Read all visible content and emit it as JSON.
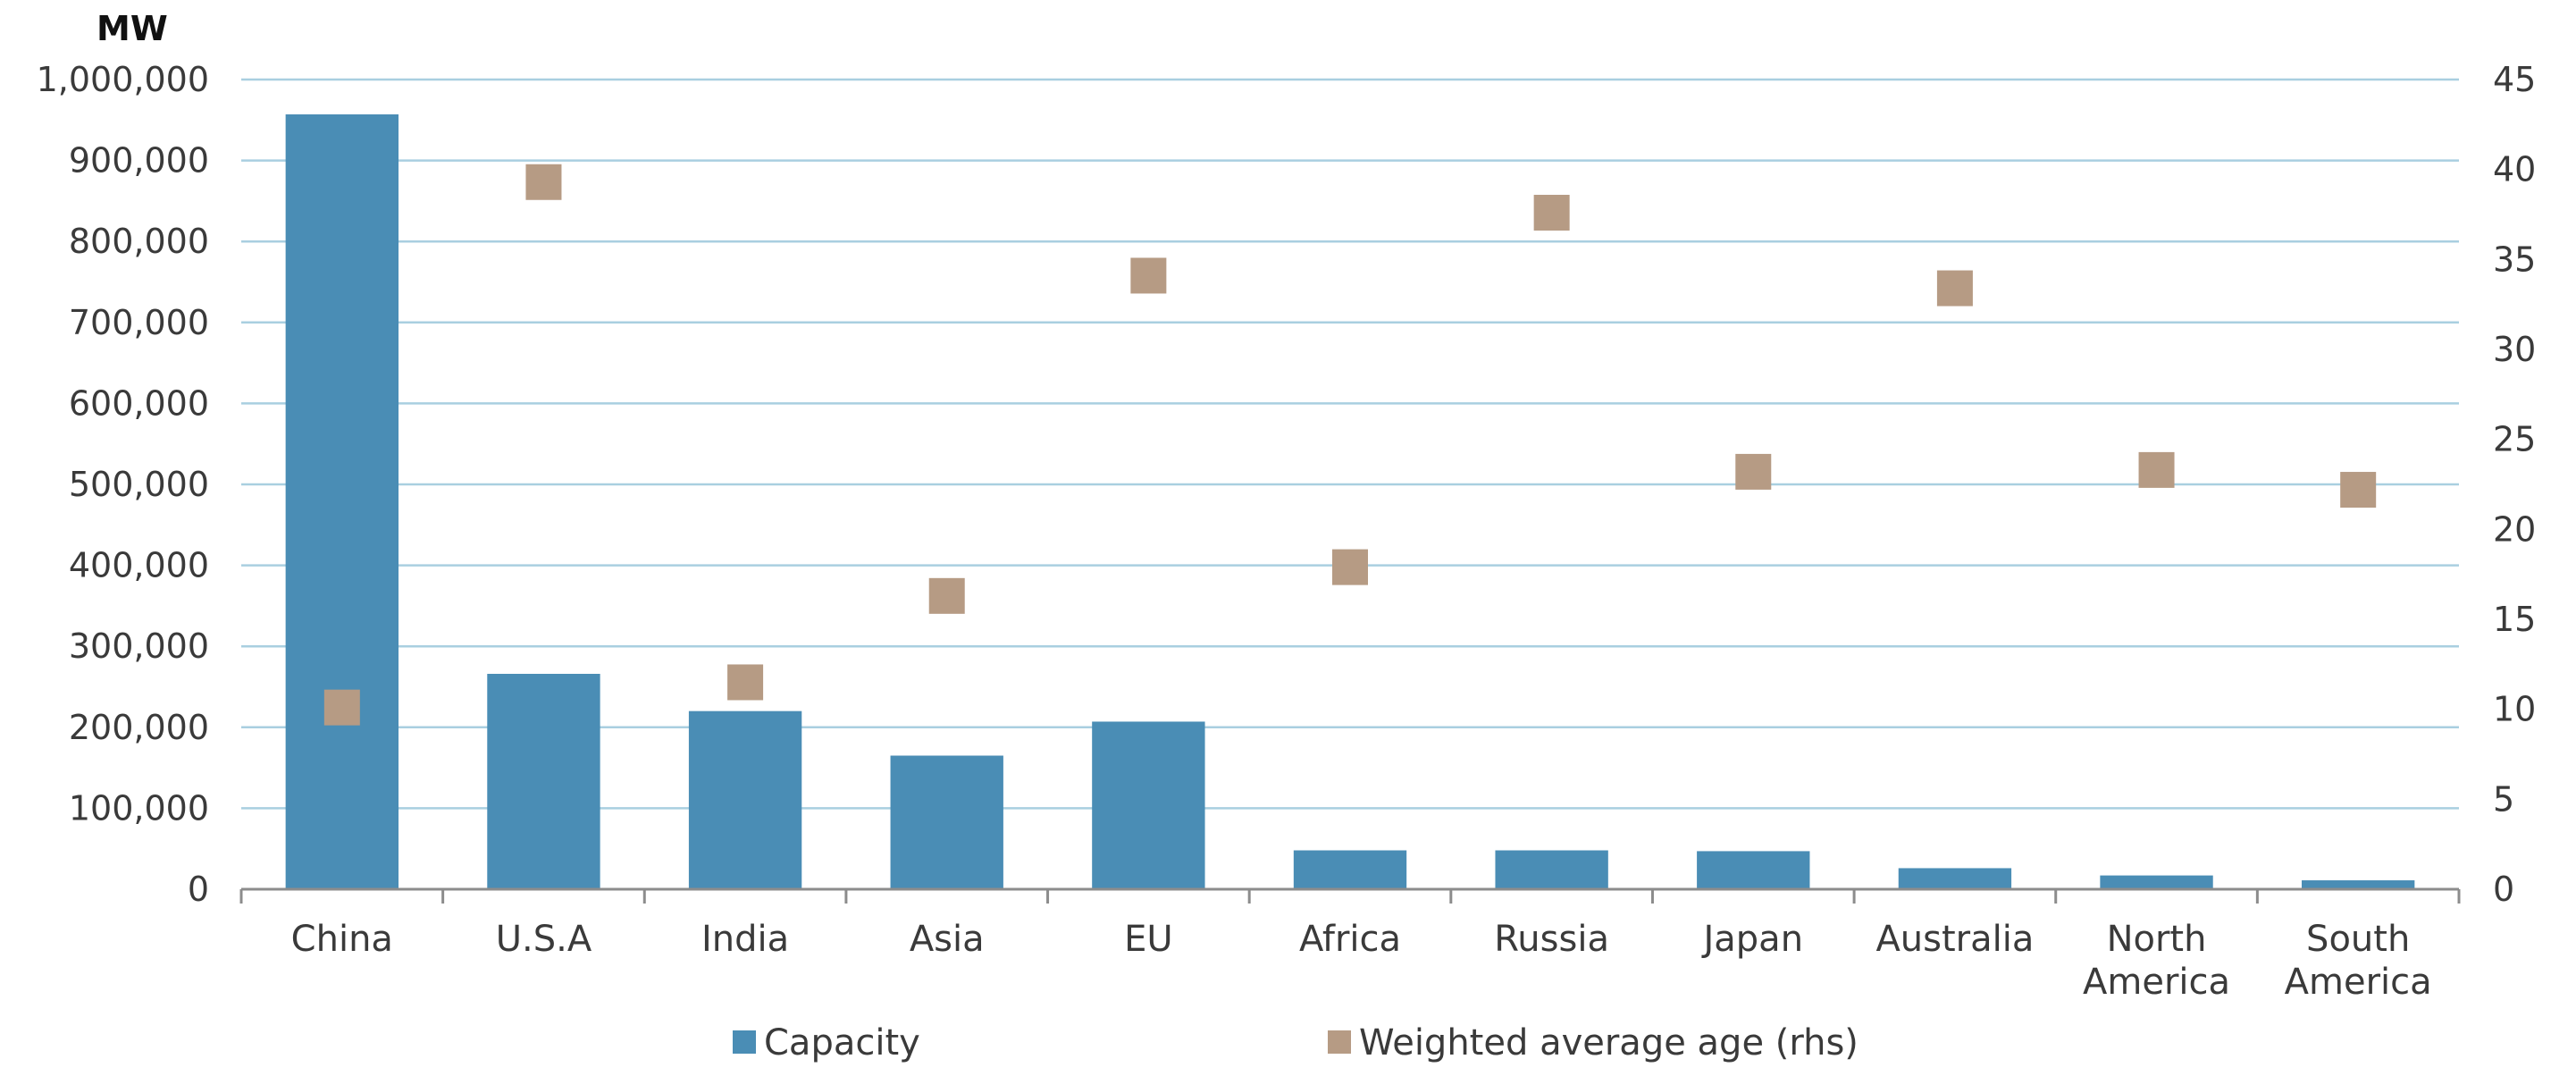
{
  "chart_data": {
    "type": "bar",
    "unit_label": "MW",
    "categories": [
      [
        "China"
      ],
      [
        "U.S.A"
      ],
      [
        "India"
      ],
      [
        "Asia"
      ],
      [
        "EU"
      ],
      [
        "Africa"
      ],
      [
        "Russia"
      ],
      [
        "Japan"
      ],
      [
        "Australia"
      ],
      [
        "North",
        "America"
      ],
      [
        "South",
        "America"
      ]
    ],
    "category_names": [
      "China",
      "U.S.A",
      "India",
      "Asia",
      "EU",
      "Africa",
      "Russia",
      "Japan",
      "Australia",
      "North America",
      "South America"
    ],
    "y_left": {
      "range": [
        0,
        1000000
      ],
      "ticks": [
        0,
        100000,
        200000,
        300000,
        400000,
        500000,
        600000,
        700000,
        800000,
        900000,
        1000000
      ],
      "tick_labels": [
        "0",
        "100,000",
        "200,000",
        "300,000",
        "400,000",
        "500,000",
        "600,000",
        "700,000",
        "800,000",
        "900,000",
        "1,000,000"
      ]
    },
    "y_right": {
      "range": [
        0,
        45
      ],
      "ticks": [
        0,
        5,
        10,
        15,
        20,
        25,
        30,
        35,
        40,
        45
      ],
      "tick_labels": [
        "0",
        "5",
        "10",
        "15",
        "20",
        "25",
        "30",
        "35",
        "40",
        "45"
      ]
    },
    "series": [
      {
        "name": "Capacity",
        "kind": "bar",
        "axis": "left",
        "color": "#4a8db5",
        "values": [
          957000,
          266000,
          220000,
          165000,
          207000,
          48000,
          48000,
          47000,
          26000,
          17000,
          11000
        ]
      },
      {
        "name": "Weighted average age (rhs)",
        "kind": "marker",
        "axis": "right",
        "color": "#b69b84",
        "values": [
          10.1,
          39.3,
          11.5,
          16.3,
          34.1,
          17.9,
          37.6,
          23.2,
          33.4,
          23.3,
          22.2
        ]
      }
    ],
    "grid": true,
    "legend_position": "bottom"
  }
}
